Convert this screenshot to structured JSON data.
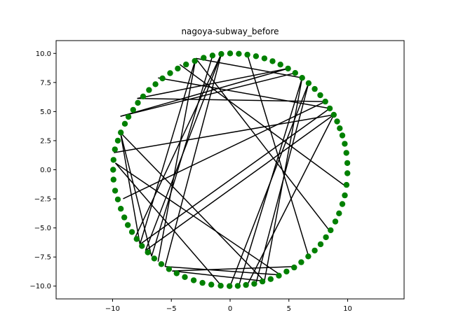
{
  "chart_data": {
    "type": "scatter",
    "title": "nagoya-subway_before",
    "xlabel": "",
    "ylabel": "",
    "xlim": [
      -14.8,
      14.8
    ],
    "ylim": [
      -11.1,
      11.1
    ],
    "x_ticks": [
      -10,
      -5,
      0,
      5,
      10
    ],
    "x_tick_labels": [
      "−10",
      "−5",
      "0",
      "5",
      "10"
    ],
    "y_ticks": [
      10.0,
      7.5,
      5.0,
      2.5,
      0.0,
      -2.5,
      -5.0,
      -7.5,
      -10.0
    ],
    "y_tick_labels": [
      "10.0",
      "7.5",
      "5.0",
      "2.5",
      "0.0",
      "−2.5",
      "−5.0",
      "−7.5",
      "−10.0"
    ],
    "grid": false,
    "node_color": "#008000",
    "edge_color": "#000000",
    "nodes": [
      [
        0.0,
        10.0
      ],
      [
        0.74,
        9.97
      ],
      [
        1.47,
        9.89
      ],
      [
        2.2,
        9.76
      ],
      [
        2.92,
        9.57
      ],
      [
        3.61,
        9.33
      ],
      [
        4.28,
        9.04
      ],
      [
        4.93,
        8.7
      ],
      [
        5.54,
        8.32
      ],
      [
        6.13,
        7.9
      ],
      [
        6.68,
        7.44
      ],
      [
        7.2,
        6.94
      ],
      [
        7.67,
        6.41
      ],
      [
        8.1,
        5.86
      ],
      [
        8.48,
        5.27
      ],
      [
        8.82,
        4.72
      ],
      [
        9.1,
        4.15
      ],
      [
        9.33,
        3.56
      ],
      [
        9.55,
        2.95
      ],
      [
        9.75,
        2.23
      ],
      [
        9.89,
        1.45
      ],
      [
        9.97,
        0.58
      ],
      [
        9.98,
        -0.3
      ],
      [
        9.9,
        -1.3
      ],
      [
        9.76,
        -2.2
      ],
      [
        9.55,
        -2.95
      ],
      [
        9.27,
        -3.75
      ],
      [
        8.95,
        -4.45
      ],
      [
        8.55,
        -5.2
      ],
      [
        8.15,
        -5.8
      ],
      [
        7.7,
        -6.4
      ],
      [
        7.2,
        -6.94
      ],
      [
        6.65,
        -7.45
      ],
      [
        6.05,
        -7.95
      ],
      [
        5.45,
        -8.4
      ],
      [
        4.8,
        -8.75
      ],
      [
        4.15,
        -9.1
      ],
      [
        3.45,
        -9.4
      ],
      [
        2.75,
        -9.6
      ],
      [
        2.05,
        -9.8
      ],
      [
        1.35,
        -9.9
      ],
      [
        0.65,
        -9.98
      ],
      [
        -0.05,
        -10.0
      ],
      [
        -0.8,
        -9.97
      ],
      [
        -1.6,
        -9.87
      ],
      [
        -2.35,
        -9.72
      ],
      [
        -3.1,
        -9.5
      ],
      [
        -3.85,
        -9.22
      ],
      [
        -4.55,
        -8.9
      ],
      [
        -5.2,
        -8.54
      ],
      [
        -5.85,
        -8.11
      ],
      [
        -6.45,
        -7.63
      ],
      [
        -7.0,
        -7.1
      ],
      [
        -7.5,
        -6.55
      ],
      [
        -7.95,
        -5.95
      ],
      [
        -8.35,
        -5.35
      ],
      [
        -8.7,
        -4.75
      ],
      [
        -9.0,
        -4.1
      ],
      [
        -9.3,
        -3.35
      ],
      [
        -9.55,
        -2.55
      ],
      [
        -9.78,
        -1.8
      ],
      [
        -9.92,
        -0.85
      ],
      [
        -9.95,
        0.0
      ],
      [
        -9.92,
        0.85
      ],
      [
        -9.8,
        1.75
      ],
      [
        -9.55,
        2.5
      ],
      [
        -9.3,
        3.2
      ],
      [
        -8.95,
        3.95
      ],
      [
        -8.65,
        4.55
      ],
      [
        -8.25,
        5.15
      ],
      [
        -7.85,
        5.75
      ],
      [
        -7.4,
        6.3
      ],
      [
        -6.9,
        6.85
      ],
      [
        -6.35,
        7.35
      ],
      [
        -5.75,
        7.85
      ],
      [
        -5.1,
        8.3
      ],
      [
        -4.45,
        8.7
      ],
      [
        -3.75,
        9.05
      ],
      [
        -3.0,
        9.35
      ],
      [
        -2.25,
        9.62
      ],
      [
        -1.5,
        9.82
      ],
      [
        -0.75,
        9.95
      ]
    ],
    "edges": [
      [
        [
          -2.92,
          9.57
        ],
        [
          -7.67,
          -6.41
        ]
      ],
      [
        [
          -2.92,
          9.57
        ],
        [
          -6.13,
          -7.9
        ]
      ],
      [
        [
          -2.92,
          9.57
        ],
        [
          6.13,
          7.9
        ]
      ],
      [
        [
          -2.92,
          9.57
        ],
        [
          8.48,
          -5.27
        ]
      ],
      [
        [
          -0.74,
          9.97
        ],
        [
          -7.2,
          -6.94
        ]
      ],
      [
        [
          -0.74,
          9.97
        ],
        [
          -8.1,
          -5.86
        ]
      ],
      [
        [
          -0.74,
          9.97
        ],
        [
          -5.54,
          -8.32
        ]
      ],
      [
        [
          -1.47,
          9.89
        ],
        [
          -6.68,
          -7.44
        ]
      ],
      [
        [
          1.47,
          9.89
        ],
        [
          6.68,
          -7.44
        ]
      ],
      [
        [
          -7.9,
          6.13
        ],
        [
          8.1,
          5.86
        ]
      ],
      [
        [
          -7.9,
          6.13
        ],
        [
          4.93,
          8.7
        ]
      ],
      [
        [
          -9.33,
          4.59
        ],
        [
          4.93,
          8.7
        ]
      ],
      [
        [
          -9.33,
          4.59
        ],
        [
          5.54,
          8.32
        ]
      ],
      [
        [
          -4.28,
          9.04
        ],
        [
          9.89,
          -1.47
        ]
      ],
      [
        [
          -9.89,
          1.47
        ],
        [
          8.82,
          4.72
        ]
      ],
      [
        [
          -9.1,
          -2.49
        ],
        [
          8.1,
          5.86
        ]
      ],
      [
        [
          -9.76,
          0.58
        ],
        [
          -0.74,
          -9.97
        ]
      ],
      [
        [
          -9.76,
          0.58
        ],
        [
          4.28,
          -9.04
        ]
      ],
      [
        [
          -9.33,
          3.19
        ],
        [
          -6.68,
          -7.44
        ]
      ],
      [
        [
          -9.33,
          3.19
        ],
        [
          -7.67,
          -6.41
        ]
      ],
      [
        [
          -9.33,
          3.19
        ],
        [
          2.92,
          -9.57
        ]
      ],
      [
        [
          -7.2,
          -6.94
        ],
        [
          8.82,
          4.72
        ]
      ],
      [
        [
          -7.67,
          -6.41
        ],
        [
          8.48,
          5.27
        ]
      ],
      [
        [
          -5.54,
          -8.32
        ],
        [
          4.28,
          -9.04
        ]
      ],
      [
        [
          -4.93,
          -8.7
        ],
        [
          2.92,
          -9.57
        ]
      ],
      [
        [
          -4.93,
          -8.7
        ],
        [
          5.54,
          -8.32
        ]
      ],
      [
        [
          0.0,
          -10.0
        ],
        [
          6.68,
          7.44
        ]
      ],
      [
        [
          0.74,
          -9.97
        ],
        [
          6.13,
          7.9
        ]
      ],
      [
        [
          2.2,
          -9.76
        ],
        [
          6.68,
          7.44
        ]
      ],
      [
        [
          2.92,
          -9.57
        ],
        [
          6.13,
          7.9
        ]
      ],
      [
        [
          1.47,
          -9.89
        ],
        [
          8.82,
          4.72
        ]
      ],
      [
        [
          -6.13,
          7.9
        ],
        [
          8.48,
          5.27
        ]
      ]
    ]
  }
}
